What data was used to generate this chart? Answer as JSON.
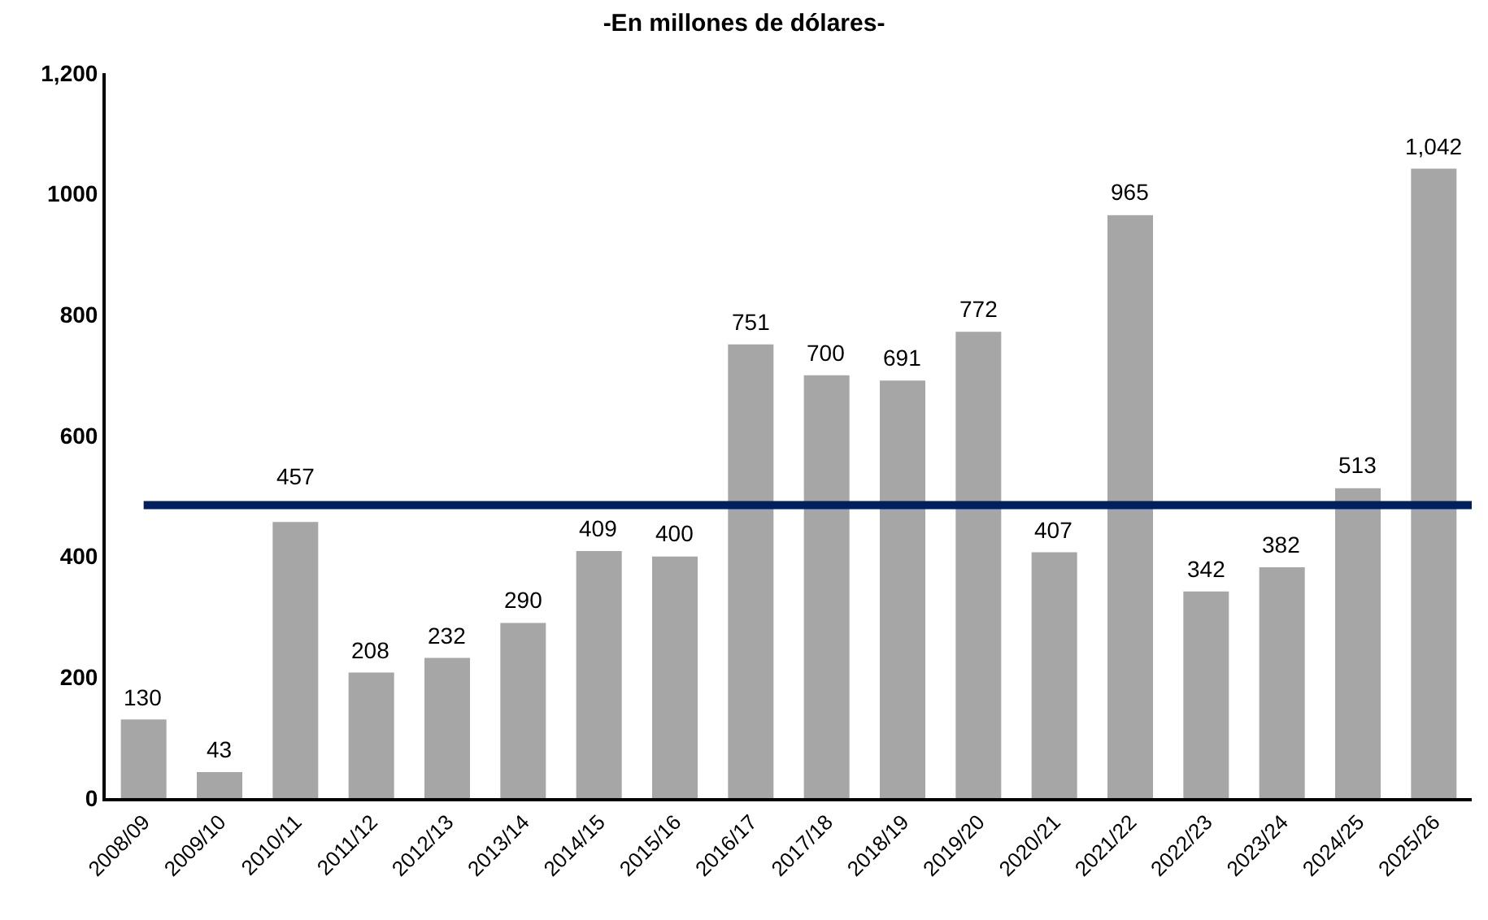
{
  "chart_data": {
    "type": "bar",
    "title": "-En millones de dólares-",
    "categories": [
      "2008/09",
      "2009/10",
      "2010/11",
      "2011/12",
      "2012/13",
      "2013/14",
      "2014/15",
      "2015/16",
      "2016/17",
      "2017/18",
      "2018/19",
      "2019/20",
      "2020/21",
      "2021/22",
      "2022/23",
      "2023/24",
      "2024/25",
      "2025/26"
    ],
    "values": [
      130,
      43,
      457,
      208,
      232,
      290,
      409,
      400,
      751,
      700,
      691,
      772,
      407,
      965,
      342,
      382,
      513,
      1042
    ],
    "color": "#a6a6a6",
    "value_labels": [
      "130",
      "43",
      "457",
      "208",
      "232",
      "290",
      "409",
      "400",
      "751",
      "700",
      "691",
      "772",
      "407",
      "965",
      "342",
      "382",
      "513",
      "1,042"
    ],
    "ylim": [
      0,
      1200
    ],
    "yticks": [
      0,
      200,
      400,
      600,
      800,
      1000,
      {
        "value": 1200,
        "label": "1,200"
      }
    ],
    "ref_lines": [
      {
        "axis": "y",
        "value": 485,
        "label": null,
        "color": "#002060"
      }
    ]
  }
}
